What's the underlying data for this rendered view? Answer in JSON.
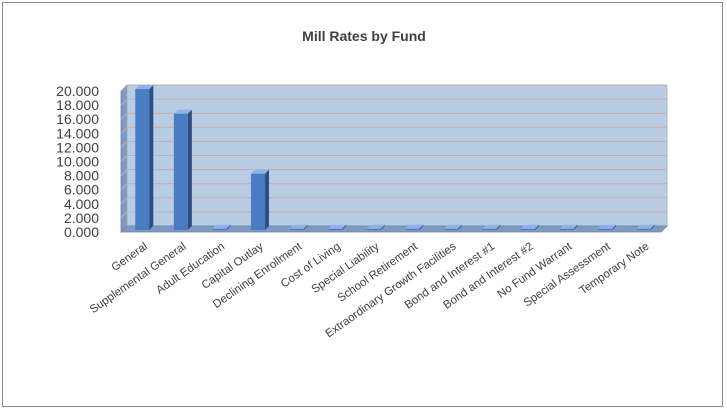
{
  "chart_data": {
    "type": "bar",
    "style": "3d-clustered-column",
    "title": "Mill Rates by Fund",
    "categories": [
      "General",
      "Supplemental General",
      "Adult Education",
      "Capital Outlay",
      "Declining Enrollment",
      "Cost of Living",
      "Special Liability",
      "School Retirement",
      "Extraordinary Growth Facilities",
      "Bond and Interest #1",
      "Bond and Interest #2",
      "No Fund Warrant",
      "Special Assessment",
      "Temporary Note"
    ],
    "values": [
      20.0,
      16.5,
      0,
      8.0,
      0,
      0,
      0,
      0,
      0,
      0,
      0,
      0,
      0,
      0
    ],
    "yticks": [
      "0.000",
      "2.000",
      "4.000",
      "6.000",
      "8.000",
      "10.000",
      "12.000",
      "14.000",
      "16.000",
      "18.000",
      "20.000"
    ],
    "ylim": [
      0,
      20
    ],
    "grid": true,
    "legend": "none",
    "colors": {
      "bar_front": "#4a7cc4",
      "bar_side": "#2e4f82",
      "bar_top": "#8fb2e6",
      "back_wall": "#b8cce4",
      "side_wall": "#7f9abf",
      "floor": "#7f9abf",
      "gridline": "#c8a9a9"
    }
  }
}
